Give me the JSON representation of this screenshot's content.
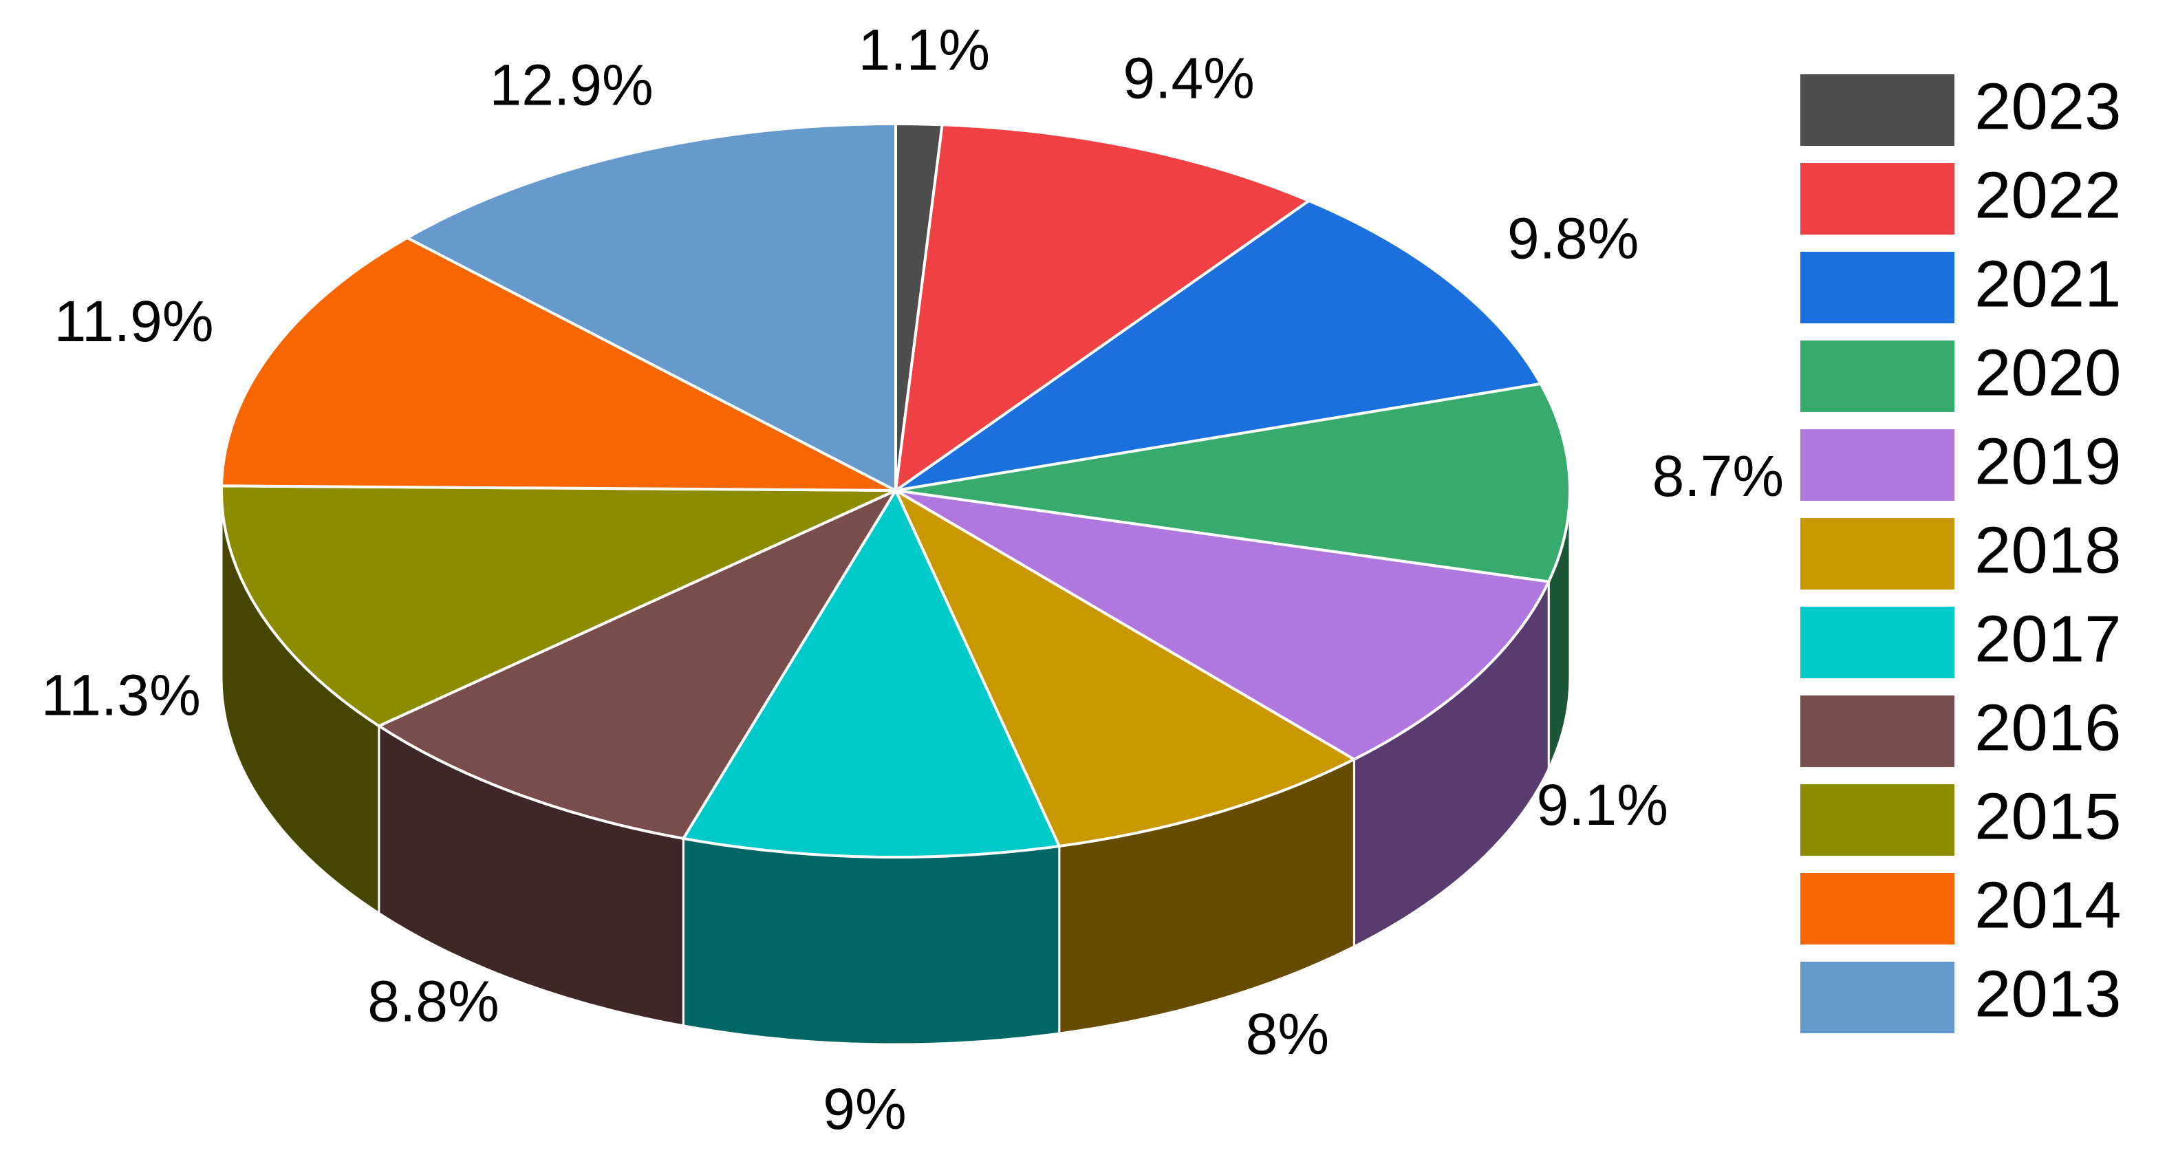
{
  "chart_data": {
    "type": "pie",
    "categories": [
      "2023",
      "2022",
      "2021",
      "2020",
      "2019",
      "2018",
      "2017",
      "2016",
      "2015",
      "2014",
      "2013"
    ],
    "values": [
      1.1,
      9.4,
      9.8,
      8.7,
      9.1,
      8,
      9,
      8.8,
      11.3,
      11.9,
      12.9
    ],
    "value_labels": [
      "1.1%",
      "9.4%",
      "9.8%",
      "8.7%",
      "9.1%",
      "8%",
      "9%",
      "8.8%",
      "11.3%",
      "11.9%",
      "12.9%"
    ],
    "colors": [
      "#4d4d4d",
      "#ef4043",
      "#1b70de",
      "#36ab6b",
      "#b077de",
      "#c99700",
      "#00c9c9",
      "#7a4d4d",
      "#8c8c00",
      "#f76600",
      "#6699cc"
    ],
    "legend": "right"
  }
}
